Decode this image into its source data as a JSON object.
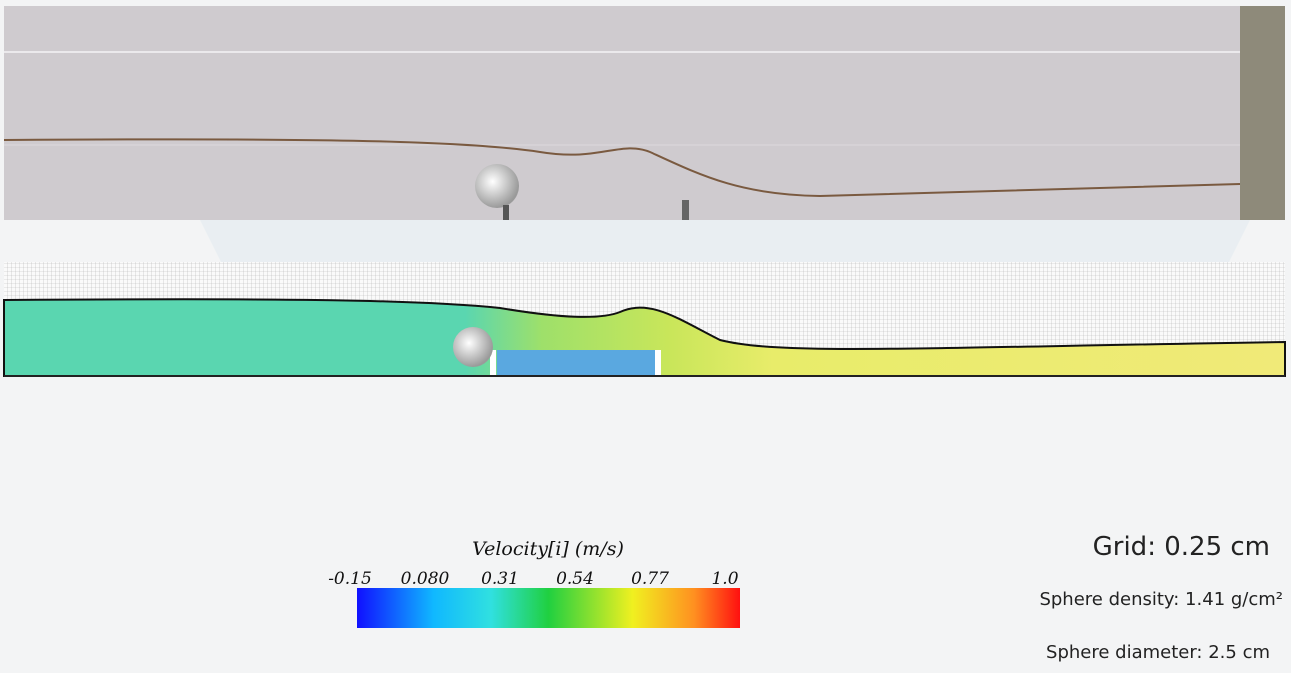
{
  "colorbar": {
    "title": "Velocity[i] (m/s)",
    "tick_labels": [
      "-0.15",
      "0.080",
      "0.31",
      "0.54",
      "0.77",
      "1.0"
    ]
  },
  "info": {
    "grid": "Grid: 0.25 cm",
    "density": "Sphere density: 1.41 g/cm²",
    "diameter": "Sphere diameter: 2.5 cm"
  }
}
